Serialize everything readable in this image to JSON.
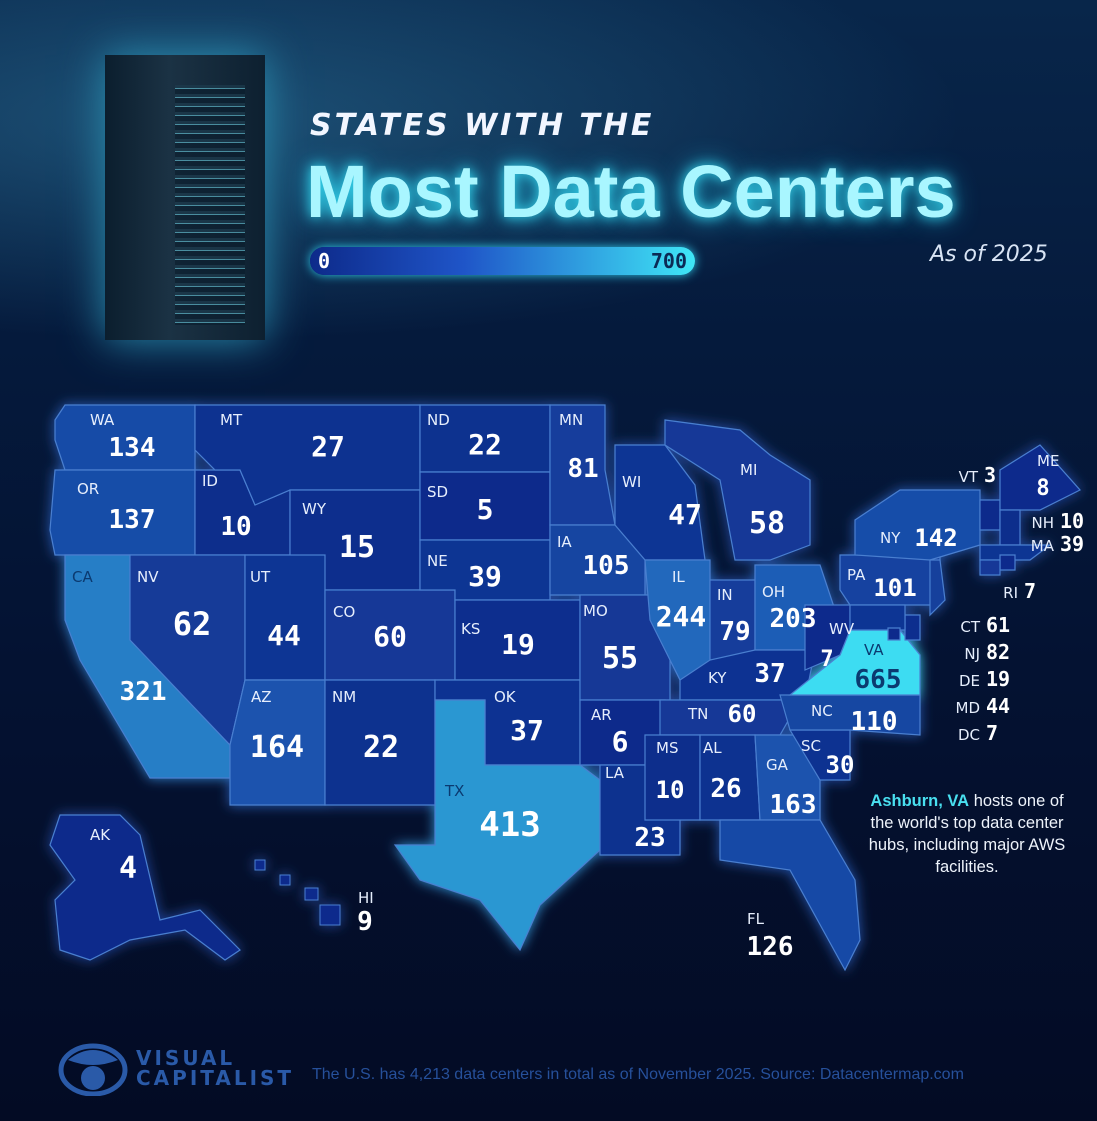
{
  "header": {
    "subtitle": "STATES WITH THE",
    "title": "Most Data Centers",
    "as_of": "As of 2025"
  },
  "legend": {
    "min_label": "0",
    "max_label": "700",
    "color_low": "#0d2a8a",
    "color_mid": "#1f5fb8",
    "color_high": "#3fe6f6"
  },
  "chart_data": {
    "type": "choropleth",
    "title": "States with the Most Data Centers",
    "scale": {
      "min": 0,
      "max": 700
    },
    "states": [
      {
        "code": "WA",
        "value": 134
      },
      {
        "code": "OR",
        "value": 137
      },
      {
        "code": "CA",
        "value": 321
      },
      {
        "code": "ID",
        "value": 10
      },
      {
        "code": "MT",
        "value": 27
      },
      {
        "code": "WY",
        "value": 15
      },
      {
        "code": "NV",
        "value": 62
      },
      {
        "code": "UT",
        "value": 44
      },
      {
        "code": "CO",
        "value": 60
      },
      {
        "code": "AZ",
        "value": 164
      },
      {
        "code": "NM",
        "value": 22
      },
      {
        "code": "ND",
        "value": 22
      },
      {
        "code": "SD",
        "value": 5
      },
      {
        "code": "NE",
        "value": 39
      },
      {
        "code": "KS",
        "value": 19
      },
      {
        "code": "OK",
        "value": 37
      },
      {
        "code": "TX",
        "value": 413
      },
      {
        "code": "MN",
        "value": 81
      },
      {
        "code": "IA",
        "value": 105
      },
      {
        "code": "MO",
        "value": 55
      },
      {
        "code": "AR",
        "value": 6
      },
      {
        "code": "LA",
        "value": 23
      },
      {
        "code": "WI",
        "value": 47
      },
      {
        "code": "IL",
        "value": 244
      },
      {
        "code": "MI",
        "value": 58
      },
      {
        "code": "IN",
        "value": 79
      },
      {
        "code": "OH",
        "value": 203
      },
      {
        "code": "KY",
        "value": 37
      },
      {
        "code": "TN",
        "value": 60
      },
      {
        "code": "MS",
        "value": 10
      },
      {
        "code": "AL",
        "value": 26
      },
      {
        "code": "GA",
        "value": 163
      },
      {
        "code": "FL",
        "value": 126
      },
      {
        "code": "SC",
        "value": 30
      },
      {
        "code": "NC",
        "value": 110
      },
      {
        "code": "VA",
        "value": 665
      },
      {
        "code": "WV",
        "value": 7
      },
      {
        "code": "PA",
        "value": 101
      },
      {
        "code": "NY",
        "value": 142
      },
      {
        "code": "VT",
        "value": 3
      },
      {
        "code": "ME",
        "value": 8
      },
      {
        "code": "NH",
        "value": 10
      },
      {
        "code": "MA",
        "value": 39
      },
      {
        "code": "RI",
        "value": 7
      },
      {
        "code": "CT",
        "value": 61
      },
      {
        "code": "NJ",
        "value": 82
      },
      {
        "code": "DE",
        "value": 19
      },
      {
        "code": "MD",
        "value": 44
      },
      {
        "code": "DC",
        "value": 7
      },
      {
        "code": "AK",
        "value": 4
      },
      {
        "code": "HI",
        "value": 9
      }
    ]
  },
  "annotation": {
    "highlight": "Ashburn, VA",
    "text": " hosts one of the world's top data center hubs, including major AWS facilities."
  },
  "footer": {
    "logo_line1": "VISUAL",
    "logo_line2": "CAPITALIST",
    "note": "The U.S. has 4,213 data centers in total as of November 2025. Source: Datacentermap.com"
  }
}
